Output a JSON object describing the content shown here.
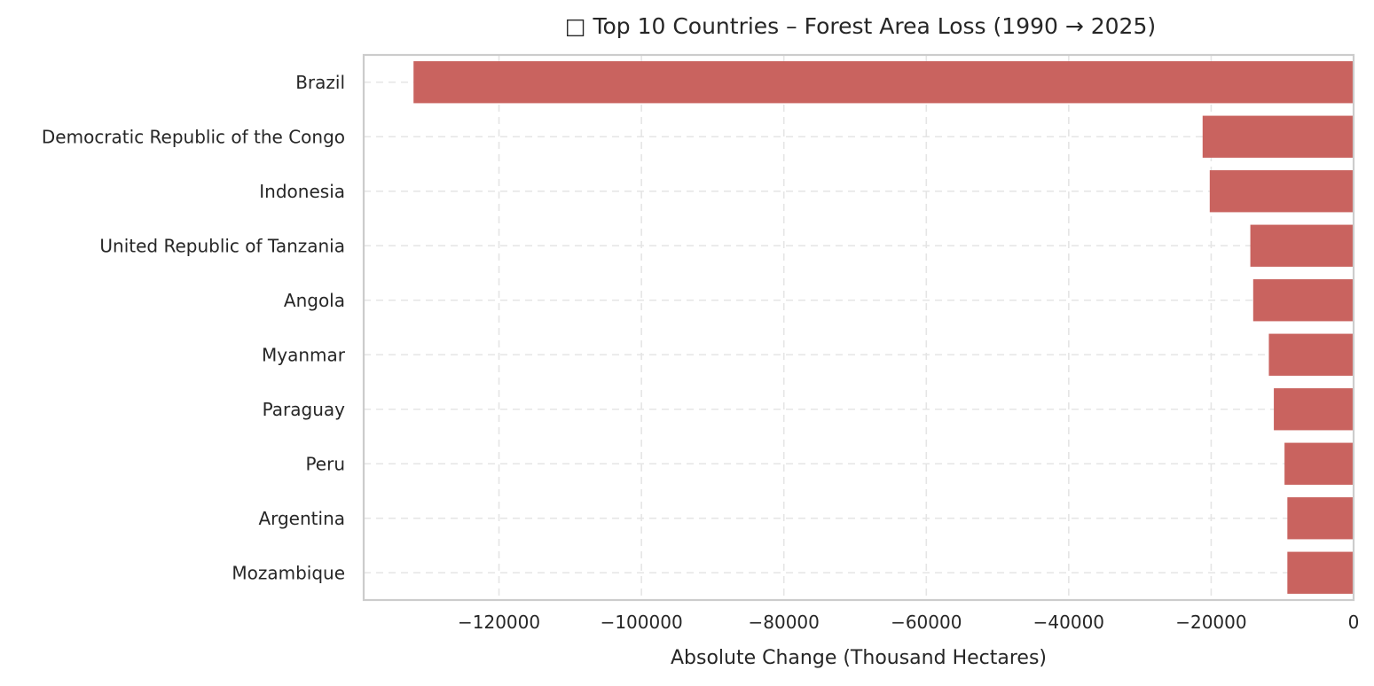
{
  "chart_data": {
    "type": "bar",
    "orientation": "horizontal",
    "title": "□ Top 10 Countries – Forest Area Loss (1990 → 2025)",
    "xlabel": "Absolute Change (Thousand Hectares)",
    "ylabel": "",
    "categories": [
      "Brazil",
      "Democratic Republic of the Congo",
      "Indonesia",
      "United Republic of Tanzania",
      "Angola",
      "Myanmar",
      "Paraguay",
      "Peru",
      "Argentina",
      "Mozambique"
    ],
    "values": [
      -132000,
      -21200,
      -20200,
      -14500,
      -14100,
      -11900,
      -11200,
      -9700,
      -9300,
      -9300
    ],
    "xlim": [
      -139000,
      0
    ],
    "xticks": [
      -120000,
      -100000,
      -80000,
      -60000,
      -40000,
      -20000,
      0
    ],
    "xtick_labels": [
      "−120000",
      "−100000",
      "−80000",
      "−60000",
      "−40000",
      "−20000",
      "0"
    ],
    "bar_color": "#c9635f",
    "grid": true,
    "legend": "none"
  }
}
